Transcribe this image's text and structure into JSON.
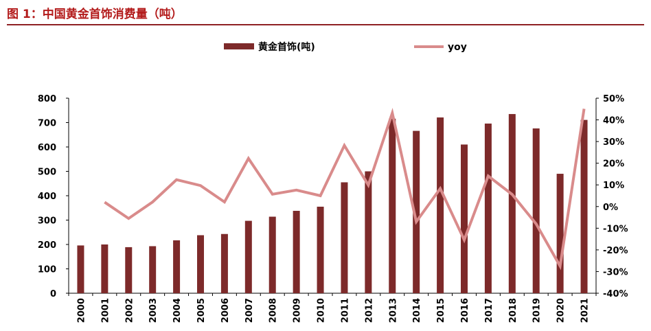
{
  "figure": {
    "title": "图 1：中国黄金首饰消费量（吨）"
  },
  "chart_data": {
    "type": "bar",
    "categories": [
      "2000",
      "2001",
      "2002",
      "2003",
      "2004",
      "2005",
      "2006",
      "2007",
      "2008",
      "2009",
      "2010",
      "2011",
      "2012",
      "2013",
      "2014",
      "2015",
      "2016",
      "2017",
      "2018",
      "2019",
      "2020",
      "2021"
    ],
    "series": [
      {
        "name": "黄金首饰(吨)",
        "type": "bar",
        "axis": "left",
        "color": "#7d2a2a",
        "values": [
          196,
          200,
          189,
          193,
          217,
          238,
          243,
          297,
          314,
          338,
          355,
          455,
          500,
          716,
          666,
          721,
          610,
          696,
          735,
          676,
          490,
          711
        ]
      },
      {
        "name": "yoy",
        "type": "line",
        "axis": "right",
        "color": "#d98b8b",
        "values": [
          null,
          2.0,
          -5.5,
          2.1,
          12.4,
          9.7,
          2.1,
          22.2,
          5.7,
          7.6,
          5.0,
          28.2,
          9.9,
          43.2,
          -7.0,
          8.3,
          -15.4,
          14.1,
          5.6,
          -8.0,
          -27.5,
          45.1
        ]
      }
    ],
    "yaxis_left": {
      "range": [
        0,
        800
      ],
      "ticks": [
        "0",
        "100",
        "200",
        "300",
        "400",
        "500",
        "600",
        "700",
        "800"
      ]
    },
    "yaxis_right": {
      "range": [
        -40,
        50
      ],
      "ticks": [
        "-40%",
        "-30%",
        "-20%",
        "-10%",
        "0%",
        "10%",
        "20%",
        "30%",
        "40%",
        "50%"
      ]
    },
    "legend": {
      "position": "top-center"
    },
    "grid": false
  }
}
